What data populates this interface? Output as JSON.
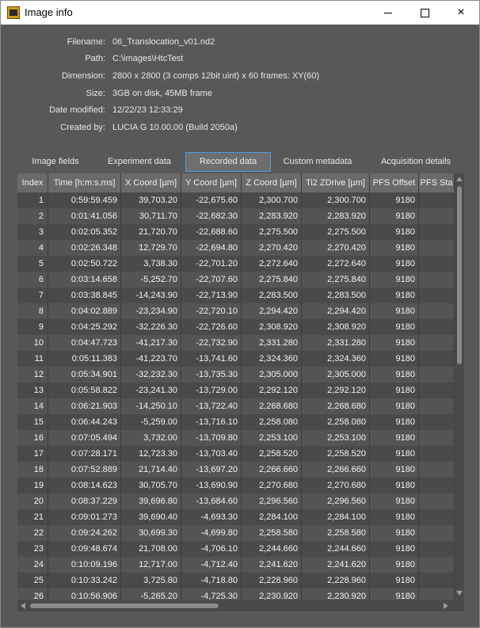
{
  "window": {
    "title": "Image info",
    "icon": "app-icon",
    "controls": {
      "minimize": "minimize-icon",
      "maximize": "maximize-icon",
      "close": "×"
    }
  },
  "info": [
    {
      "label": "Filename:",
      "value": "06_Translocation_v01.nd2"
    },
    {
      "label": "Path:",
      "value": "C:\\images\\HtcTest"
    },
    {
      "label": "Dimension:",
      "value": "2800 x 2800 (3 comps 12bit uint) x 60 frames: XY(60)"
    },
    {
      "label": "Size:",
      "value": "3GB on disk, 45MB frame"
    },
    {
      "label": "Date modified:",
      "value": "12/22/23 12:33:29"
    },
    {
      "label": "Created by:",
      "value": "LUCIA G 10.00.00 (Build 2050a)"
    }
  ],
  "tabs": [
    {
      "label": "Image fields",
      "active": false
    },
    {
      "label": "Experiment data",
      "active": false
    },
    {
      "label": "Recorded data",
      "active": true
    },
    {
      "label": "Custom metadata",
      "active": false
    },
    {
      "label": "Acquisition details",
      "active": false
    }
  ],
  "table": {
    "columns": [
      "Index",
      "Time [h:m:s.ms]",
      "X Coord [µm]",
      "Y Coord [µm]",
      "Z Coord [µm]",
      "Ti2 ZDrive [µm]",
      "PFS Offset",
      "PFS Sta"
    ],
    "rows": [
      [
        "1",
        "0:59:59.459",
        "39,703.20",
        "-22,675.60",
        "2,300.700",
        "2,300.700",
        "9180",
        ""
      ],
      [
        "2",
        "0:01:41.056",
        "30,711.70",
        "-22,682.30",
        "2,283.920",
        "2,283.920",
        "9180",
        ""
      ],
      [
        "3",
        "0:02:05.352",
        "21,720.70",
        "-22,688.60",
        "2,275.500",
        "2,275.500",
        "9180",
        ""
      ],
      [
        "4",
        "0:02:26.348",
        "12,729.70",
        "-22,694.80",
        "2,270.420",
        "2,270.420",
        "9180",
        ""
      ],
      [
        "5",
        "0:02:50.722",
        "3,738.30",
        "-22,701.20",
        "2,272.640",
        "2,272.640",
        "9180",
        ""
      ],
      [
        "6",
        "0:03:14.658",
        "-5,252.70",
        "-22,707.60",
        "2,275.840",
        "2,275.840",
        "9180",
        ""
      ],
      [
        "7",
        "0:03:38.845",
        "-14,243.90",
        "-22,713.90",
        "2,283.500",
        "2,283.500",
        "9180",
        ""
      ],
      [
        "8",
        "0:04:02.889",
        "-23,234.90",
        "-22,720.10",
        "2,294.420",
        "2,294.420",
        "9180",
        ""
      ],
      [
        "9",
        "0:04:25.292",
        "-32,226.30",
        "-22,726.60",
        "2,308.920",
        "2,308.920",
        "9180",
        ""
      ],
      [
        "10",
        "0:04:47.723",
        "-41,217.30",
        "-22,732.90",
        "2,331.280",
        "2,331.280",
        "9180",
        ""
      ],
      [
        "11",
        "0:05:11.383",
        "-41,223.70",
        "-13,741.60",
        "2,324.360",
        "2,324.360",
        "9180",
        ""
      ],
      [
        "12",
        "0:05:34.901",
        "-32,232.30",
        "-13,735.30",
        "2,305.000",
        "2,305.000",
        "9180",
        ""
      ],
      [
        "13",
        "0:05:58.822",
        "-23,241.30",
        "-13,729.00",
        "2,292.120",
        "2,292.120",
        "9180",
        ""
      ],
      [
        "14",
        "0:06:21.903",
        "-14,250.10",
        "-13,722.40",
        "2,268.680",
        "2,268.680",
        "9180",
        ""
      ],
      [
        "15",
        "0:06:44.243",
        "-5,259.00",
        "-13,716.10",
        "2,258.080",
        "2,258.080",
        "9180",
        ""
      ],
      [
        "16",
        "0:07:05.494",
        "3,732.00",
        "-13,709.80",
        "2,253.100",
        "2,253.100",
        "9180",
        ""
      ],
      [
        "17",
        "0:07:28.171",
        "12,723.30",
        "-13,703.40",
        "2,258.520",
        "2,258.520",
        "9180",
        ""
      ],
      [
        "18",
        "0:07:52.889",
        "21,714.40",
        "-13,697.20",
        "2,266.660",
        "2,266.660",
        "9180",
        ""
      ],
      [
        "19",
        "0:08:14.623",
        "30,705.70",
        "-13,690.90",
        "2,270.680",
        "2,270.680",
        "9180",
        ""
      ],
      [
        "20",
        "0:08:37.229",
        "39,696.80",
        "-13,684.60",
        "2,296.560",
        "2,296.560",
        "9180",
        ""
      ],
      [
        "21",
        "0:09:01.273",
        "39,690.40",
        "-4,693.30",
        "2,284.100",
        "2,284.100",
        "9180",
        ""
      ],
      [
        "22",
        "0:09:24.262",
        "30,699.30",
        "-4,699.80",
        "2,258.580",
        "2,258.580",
        "9180",
        ""
      ],
      [
        "23",
        "0:09:48.674",
        "21,708.00",
        "-4,706.10",
        "2,244.660",
        "2,244.660",
        "9180",
        ""
      ],
      [
        "24",
        "0:10:09.196",
        "12,717.00",
        "-4,712.40",
        "2,241.620",
        "2,241.620",
        "9180",
        ""
      ],
      [
        "25",
        "0:10:33.242",
        "3,725.80",
        "-4,718.80",
        "2,228.960",
        "2,228.960",
        "9180",
        ""
      ],
      [
        "26",
        "0:10:56.906",
        "-5,265.20",
        "-4,725.30",
        "2,230.920",
        "2,230.920",
        "9180",
        ""
      ]
    ]
  },
  "colors": {
    "background": "#585858",
    "active_tab_border": "#4b9be6",
    "header_bg": "#6a6a6a"
  }
}
